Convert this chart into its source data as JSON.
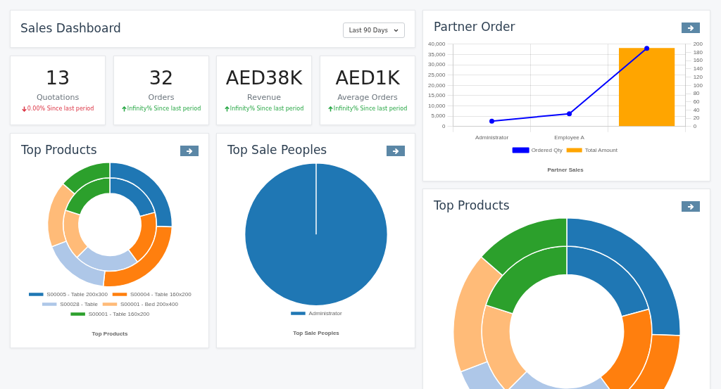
{
  "chart_data": [
    {
      "type": "other",
      "title": "Sales Dashboard",
      "annotations": [
        "Last 90 Days"
      ]
    },
    {
      "type": "other",
      "title": "13",
      "subtitle": "Quotations",
      "annotations": [
        "0.00% Since last period"
      ],
      "color": "#dc3545"
    },
    {
      "type": "other",
      "title": "32",
      "subtitle": "Orders",
      "annotations": [
        "Infinity% Since last period"
      ],
      "color": "#28a745"
    },
    {
      "type": "other",
      "title": "AED38K",
      "subtitle": "Revenue",
      "annotations": [
        "Infinity% Since last period"
      ],
      "color": "#28a745"
    },
    {
      "type": "other",
      "title": "AED1K",
      "subtitle": "Average Orders",
      "annotations": [
        "Infinity% Since last period"
      ],
      "color": "#28a745"
    },
    {
      "type": "bar",
      "title": "Partner Order",
      "subtitle": "Partner Sales",
      "categories": [
        "Administrator",
        "Employee A",
        null
      ],
      "series": [
        {
          "name": "Ordered Qty",
          "type": "line",
          "axis": "y2",
          "color": "#0000ff",
          "values": [
            13,
            31,
            190
          ]
        },
        {
          "name": "Total Amount",
          "color": "#ffa500",
          "values": [
            0,
            0,
            38100
          ]
        }
      ],
      "ylim": [
        0,
        40000
      ],
      "yticks": [
        0,
        {
          "value": 5000,
          "label": "5,000"
        },
        {
          "value": 10000,
          "label": "10,000"
        },
        {
          "value": 15000,
          "label": "15,000"
        },
        {
          "value": 20000,
          "label": "20,000"
        },
        {
          "value": 25000,
          "label": "25,000"
        },
        {
          "value": 30000,
          "label": "30,000"
        },
        {
          "value": 35000,
          "label": "35,000"
        },
        {
          "value": 40000,
          "label": "40,000"
        }
      ],
      "y2lim": [
        0,
        200
      ],
      "y2ticks": [
        0,
        20,
        40,
        60,
        80,
        100,
        120,
        140,
        160,
        180,
        200
      ],
      "grid": true,
      "legend": "bottom",
      "marker": "circle"
    },
    {
      "type": "donut",
      "title": "Top Products",
      "subtitle": "Top Products",
      "categories": [
        "S00005 - Table 200x300",
        "S00004 - Table 160x200",
        "S00028 - Table",
        "S00001 - Bed 200x400",
        "S00001 - Table 160x200"
      ],
      "colors": [
        "#1f77b4",
        "#ff7f0e",
        "#aec7e8",
        "#ffbb78",
        "#2ca02c"
      ],
      "series": [
        {
          "values": [
            25.6,
            26.1,
            17.5,
            17.2,
            13.6
          ]
        },
        {
          "values": [
            20.8,
            19.1,
            22.6,
            17.5,
            20
          ]
        }
      ],
      "legend": "bottom"
    },
    {
      "type": "pie",
      "title": "Top Sale Peoples",
      "subtitle": "Top Sale Peoples",
      "categories": [
        "Administrator"
      ],
      "values": [
        100
      ],
      "colors": [
        "#1f77b4"
      ],
      "legend": "bottom"
    },
    {
      "type": "donut",
      "title": "Top Products",
      "categories": [
        null,
        null,
        null,
        null,
        null
      ],
      "colors": [
        "#1f77b4",
        "#ff7f0e",
        "#aec7e8",
        "#ffbb78",
        "#2ca02c"
      ],
      "series": [
        {
          "values": [
            25.6,
            26.1,
            17.5,
            17.2,
            13.6
          ]
        },
        {
          "values": [
            20.8,
            19.1,
            22.6,
            17.5,
            20
          ]
        }
      ]
    }
  ]
}
